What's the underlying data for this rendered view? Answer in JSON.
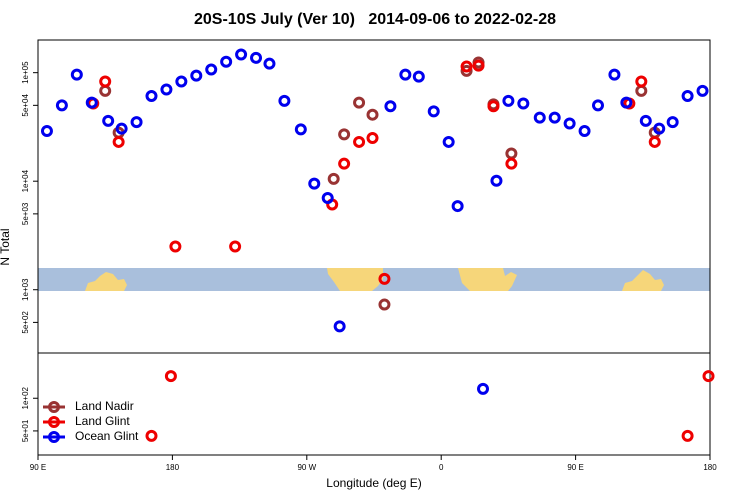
{
  "chart_data": {
    "type": "scatter",
    "title": "20S-10S July (Ver 10)   2014-09-06 to 2022-02-28",
    "x_label": "Longitude (deg E)",
    "y_label": "N Total",
    "xlim": [
      90,
      540
    ],
    "xticks": [
      {
        "value": 90,
        "label": "90 E"
      },
      {
        "value": 180,
        "label": "180"
      },
      {
        "value": 270,
        "label": "90 W"
      },
      {
        "value": 360,
        "label": "0"
      },
      {
        "value": 450,
        "label": "90 E"
      },
      {
        "value": 540,
        "label": "180"
      }
    ],
    "ylim": [
      30,
      200000
    ],
    "y_scale": "log",
    "yticks": [
      {
        "value": 50,
        "label": "5e+01"
      },
      {
        "value": 100,
        "label": "1e+02"
      },
      {
        "value": 500,
        "label": "5e+02"
      },
      {
        "value": 1000,
        "label": "1e+03"
      },
      {
        "value": 5000,
        "label": "5e+03"
      },
      {
        "value": 10000,
        "label": "1e+04"
      },
      {
        "value": 50000,
        "label": "5e+04"
      },
      {
        "value": 100000,
        "label": "1e+05"
      }
    ],
    "legend_position": "lower left",
    "series": [
      {
        "name": "Land Nadir",
        "color": "#993333",
        "x": [
          135,
          144,
          288,
          295,
          305,
          314,
          322,
          377,
          385,
          395,
          407,
          494,
          503
        ],
        "values": [
          68000,
          28000,
          10500,
          27000,
          53000,
          41000,
          730,
          104000,
          124000,
          51000,
          18000,
          68000,
          28000
        ]
      },
      {
        "name": "Land Glint",
        "color": "#ee0000",
        "x": [
          127,
          135,
          144,
          182,
          179,
          166,
          222,
          287,
          295,
          305,
          314,
          322,
          377,
          385,
          395,
          407,
          486,
          494,
          503,
          525,
          539
        ],
        "values": [
          52000,
          83000,
          23000,
          2500,
          160,
          45,
          2500,
          6100,
          14500,
          23000,
          25000,
          1260,
          114000,
          116000,
          49000,
          14500,
          52000,
          83000,
          23000,
          45,
          160
        ]
      },
      {
        "name": "Ocean Glint",
        "color": "#0000ee",
        "x": [
          96,
          106,
          116,
          126,
          137,
          146,
          156,
          166,
          176,
          186,
          196,
          206,
          216,
          226,
          236,
          245,
          255,
          266,
          275,
          284,
          292,
          326,
          336,
          345,
          355,
          365,
          371,
          397,
          405,
          415,
          426,
          436,
          446,
          456,
          465,
          476,
          484,
          497,
          506,
          515,
          525,
          535,
          388
        ],
        "values": [
          29000,
          50000,
          96000,
          53000,
          36000,
          30500,
          35000,
          61000,
          70000,
          83000,
          94000,
          107000,
          126000,
          147000,
          137000,
          121000,
          55000,
          30000,
          9500,
          7000,
          460,
          49000,
          96000,
          92000,
          44000,
          23000,
          5900,
          10100,
          55000,
          52000,
          38500,
          38500,
          34000,
          29000,
          50000,
          96000,
          53000,
          36000,
          30500,
          35000,
          61000,
          68000,
          122
        ]
      }
    ]
  }
}
